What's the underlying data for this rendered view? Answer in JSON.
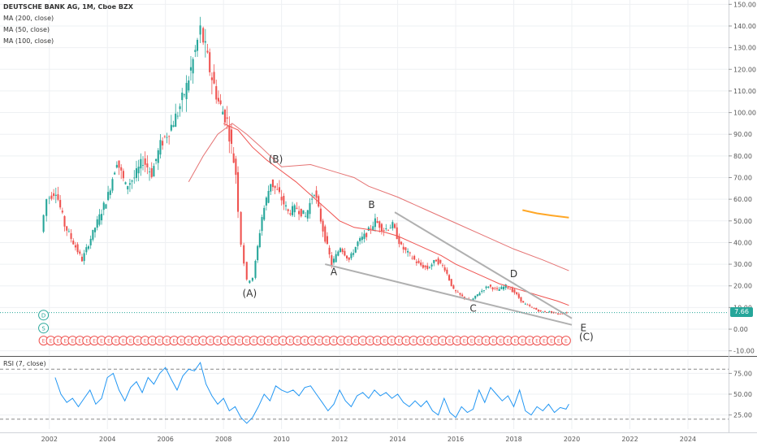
{
  "chart_data": {
    "type": "candlestick",
    "title": "DEUTSCHE BANK AG, 1M, Cboe BZX",
    "indicators": [
      "MA (200, close)",
      "MA (50, close)",
      "MA (100, close)"
    ],
    "price_axis": {
      "ticks": [
        150,
        140,
        130,
        120,
        110,
        100,
        90,
        80,
        70,
        60,
        50,
        40,
        30,
        20,
        10,
        0,
        -10
      ],
      "tick_labels": [
        "150.00",
        "140.00",
        "130.00",
        "120.00",
        "110.00",
        "100.00",
        "90.00",
        "80.00",
        "70.00",
        "60.00",
        "50.00",
        "40.00",
        "30.00",
        "20.00",
        "10.00",
        "0.00",
        "-10.00"
      ],
      "range": [
        -12,
        152
      ]
    },
    "time_axis": {
      "ticks": [
        2002,
        2004,
        2006,
        2008,
        2010,
        2012,
        2014,
        2016,
        2018,
        2020,
        2022,
        2024
      ],
      "tick_labels": [
        "2002",
        "2004",
        "2006",
        "2008",
        "2010",
        "2012",
        "2014",
        "2016",
        "2018",
        "2020",
        "2022",
        "2024"
      ],
      "range": [
        2000.3,
        2025.4
      ]
    },
    "last_price": 7.66,
    "last_price_label": "7.66",
    "price_path": [
      [
        2001.8,
        45
      ],
      [
        2002.0,
        60
      ],
      [
        2002.3,
        64
      ],
      [
        2002.6,
        48
      ],
      [
        2002.9,
        40
      ],
      [
        2003.2,
        32
      ],
      [
        2003.5,
        42
      ],
      [
        2003.8,
        52
      ],
      [
        2004.1,
        62
      ],
      [
        2004.4,
        78
      ],
      [
        2004.7,
        66
      ],
      [
        2005.0,
        70
      ],
      [
        2005.3,
        78
      ],
      [
        2005.6,
        72
      ],
      [
        2005.9,
        85
      ],
      [
        2006.2,
        92
      ],
      [
        2006.5,
        100
      ],
      [
        2006.8,
        112
      ],
      [
        2007.1,
        128
      ],
      [
        2007.3,
        138
      ],
      [
        2007.6,
        120
      ],
      [
        2007.9,
        105
      ],
      [
        2008.2,
        96
      ],
      [
        2008.5,
        72
      ],
      [
        2008.7,
        40
      ],
      [
        2008.9,
        22
      ],
      [
        2009.1,
        24
      ],
      [
        2009.4,
        52
      ],
      [
        2009.7,
        68
      ],
      [
        2010.0,
        62
      ],
      [
        2010.3,
        54
      ],
      [
        2010.6,
        56
      ],
      [
        2010.9,
        52
      ],
      [
        2011.2,
        64
      ],
      [
        2011.5,
        46
      ],
      [
        2011.8,
        30
      ],
      [
        2012.1,
        38
      ],
      [
        2012.4,
        32
      ],
      [
        2012.7,
        40
      ],
      [
        2013.0,
        44
      ],
      [
        2013.3,
        50
      ],
      [
        2013.6,
        46
      ],
      [
        2013.9,
        48
      ],
      [
        2014.2,
        38
      ],
      [
        2014.5,
        34
      ],
      [
        2014.8,
        30
      ],
      [
        2015.1,
        28
      ],
      [
        2015.4,
        32
      ],
      [
        2015.7,
        28
      ],
      [
        2016.0,
        18
      ],
      [
        2016.3,
        15
      ],
      [
        2016.6,
        13
      ],
      [
        2016.9,
        17
      ],
      [
        2017.2,
        20
      ],
      [
        2017.5,
        18
      ],
      [
        2017.8,
        20
      ],
      [
        2018.1,
        17
      ],
      [
        2018.4,
        12
      ],
      [
        2018.7,
        10
      ],
      [
        2019.0,
        8
      ],
      [
        2019.3,
        8
      ],
      [
        2019.6,
        7
      ],
      [
        2019.9,
        7.66
      ]
    ],
    "ma_fast": [
      [
        2008.0,
        95
      ],
      [
        2008.5,
        92
      ],
      [
        2009.0,
        84
      ],
      [
        2009.5,
        78
      ],
      [
        2010.0,
        73
      ],
      [
        2010.5,
        68
      ],
      [
        2011.0,
        62
      ],
      [
        2011.5,
        56
      ],
      [
        2012.0,
        50
      ],
      [
        2012.5,
        47
      ],
      [
        2013.0,
        46
      ],
      [
        2013.5,
        45
      ],
      [
        2014.0,
        43
      ],
      [
        2014.5,
        40
      ],
      [
        2015.0,
        37
      ],
      [
        2015.5,
        34
      ],
      [
        2016.0,
        30
      ],
      [
        2016.5,
        27
      ],
      [
        2017.0,
        24
      ],
      [
        2017.5,
        21
      ],
      [
        2018.0,
        19
      ],
      [
        2018.5,
        17
      ],
      [
        2019.0,
        15
      ],
      [
        2019.5,
        13
      ],
      [
        2019.9,
        11
      ]
    ],
    "ma_slow": [
      [
        2006.8,
        68
      ],
      [
        2007.3,
        80
      ],
      [
        2007.8,
        90
      ],
      [
        2008.3,
        95
      ],
      [
        2008.8,
        90
      ],
      [
        2009.3,
        84
      ],
      [
        2010.0,
        75
      ],
      [
        2011.0,
        76
      ],
      [
        2011.5,
        74
      ],
      [
        2012.0,
        72
      ],
      [
        2012.5,
        70
      ],
      [
        2013.0,
        66
      ],
      [
        2014.0,
        61
      ],
      [
        2015.0,
        55
      ],
      [
        2016.0,
        49
      ],
      [
        2017.0,
        43
      ],
      [
        2018.0,
        37
      ],
      [
        2019.0,
        32
      ],
      [
        2019.9,
        27
      ]
    ],
    "ma_short": [
      [
        2018.3,
        55
      ],
      [
        2018.8,
        53.5
      ],
      [
        2019.3,
        52.5
      ],
      [
        2019.9,
        51.5
      ]
    ],
    "wave_labels": [
      {
        "text": "(B)",
        "x": 2009.8,
        "y": 77
      },
      {
        "text": "B",
        "x": 2013.1,
        "y": 56
      },
      {
        "text": "A",
        "x": 2011.8,
        "y": 25
      },
      {
        "text": "D",
        "x": 2018.0,
        "y": 24
      },
      {
        "text": "(A)",
        "x": 2008.9,
        "y": 15
      },
      {
        "text": "C",
        "x": 2016.6,
        "y": 8
      },
      {
        "text": "E",
        "x": 2020.4,
        "y": -1
      },
      {
        "text": "(C)",
        "x": 2020.5,
        "y": -5
      }
    ],
    "trendlines": [
      {
        "from": [
          2011.5,
          30
        ],
        "to": [
          2020.0,
          2
        ]
      },
      {
        "from": [
          2013.9,
          54
        ],
        "to": [
          2020.0,
          5
        ]
      }
    ],
    "markers": [
      {
        "text": "D",
        "x": 2001.8,
        "y": 6.5
      },
      {
        "text": "S",
        "x": 2001.8,
        "y": 0.5
      }
    ],
    "earnings_marker_text": "E",
    "rsi": {
      "title": "RSI (7, close)",
      "ticks": [
        75,
        50,
        25
      ],
      "tick_labels": [
        "75.00",
        "50.00",
        "25.00"
      ],
      "range": [
        8,
        92
      ],
      "bands": [
        80,
        20
      ],
      "values": [
        [
          2002.2,
          70
        ],
        [
          2002.4,
          50
        ],
        [
          2002.6,
          40
        ],
        [
          2002.8,
          45
        ],
        [
          2003.0,
          35
        ],
        [
          2003.2,
          45
        ],
        [
          2003.4,
          55
        ],
        [
          2003.6,
          38
        ],
        [
          2003.8,
          45
        ],
        [
          2004.0,
          70
        ],
        [
          2004.2,
          75
        ],
        [
          2004.4,
          55
        ],
        [
          2004.6,
          42
        ],
        [
          2004.8,
          58
        ],
        [
          2005.0,
          65
        ],
        [
          2005.2,
          52
        ],
        [
          2005.4,
          70
        ],
        [
          2005.6,
          62
        ],
        [
          2005.8,
          75
        ],
        [
          2006.0,
          82
        ],
        [
          2006.2,
          68
        ],
        [
          2006.4,
          55
        ],
        [
          2006.6,
          72
        ],
        [
          2006.8,
          80
        ],
        [
          2007.0,
          78
        ],
        [
          2007.2,
          88
        ],
        [
          2007.4,
          62
        ],
        [
          2007.6,
          48
        ],
        [
          2007.8,
          38
        ],
        [
          2008.0,
          45
        ],
        [
          2008.2,
          30
        ],
        [
          2008.4,
          35
        ],
        [
          2008.6,
          22
        ],
        [
          2008.8,
          15
        ],
        [
          2009.0,
          22
        ],
        [
          2009.2,
          35
        ],
        [
          2009.4,
          50
        ],
        [
          2009.6,
          42
        ],
        [
          2009.8,
          60
        ],
        [
          2010.0,
          55
        ],
        [
          2010.2,
          52
        ],
        [
          2010.4,
          55
        ],
        [
          2010.6,
          48
        ],
        [
          2010.8,
          58
        ],
        [
          2011.0,
          60
        ],
        [
          2011.2,
          50
        ],
        [
          2011.4,
          40
        ],
        [
          2011.6,
          30
        ],
        [
          2011.8,
          38
        ],
        [
          2012.0,
          55
        ],
        [
          2012.2,
          42
        ],
        [
          2012.4,
          35
        ],
        [
          2012.6,
          48
        ],
        [
          2012.8,
          52
        ],
        [
          2013.0,
          45
        ],
        [
          2013.2,
          55
        ],
        [
          2013.4,
          48
        ],
        [
          2013.6,
          52
        ],
        [
          2013.8,
          45
        ],
        [
          2014.0,
          50
        ],
        [
          2014.2,
          40
        ],
        [
          2014.4,
          35
        ],
        [
          2014.6,
          42
        ],
        [
          2014.8,
          35
        ],
        [
          2015.0,
          42
        ],
        [
          2015.2,
          30
        ],
        [
          2015.4,
          25
        ],
        [
          2015.6,
          45
        ],
        [
          2015.8,
          28
        ],
        [
          2016.0,
          22
        ],
        [
          2016.2,
          35
        ],
        [
          2016.4,
          28
        ],
        [
          2016.6,
          32
        ],
        [
          2016.8,
          55
        ],
        [
          2017.0,
          40
        ],
        [
          2017.2,
          58
        ],
        [
          2017.4,
          50
        ],
        [
          2017.6,
          42
        ],
        [
          2017.8,
          48
        ],
        [
          2018.0,
          35
        ],
        [
          2018.2,
          55
        ],
        [
          2018.4,
          30
        ],
        [
          2018.6,
          25
        ],
        [
          2018.8,
          35
        ],
        [
          2019.0,
          30
        ],
        [
          2019.2,
          38
        ],
        [
          2019.4,
          28
        ],
        [
          2019.6,
          34
        ],
        [
          2019.8,
          32
        ],
        [
          2019.9,
          38
        ]
      ]
    },
    "colors": {
      "up": "#26a69a",
      "down": "#ef5350",
      "ma_fast": "#ef5350",
      "ma_slow": "#e57373",
      "ma_short": "#ffa726",
      "rsi_line": "#2196f3",
      "trendline": "#b0b0b0",
      "grid": "#eef0f3",
      "axis_text": "#555555",
      "marker": "#26a69a",
      "earnings": "#ef5350",
      "last_price_line": "#26a69a"
    }
  }
}
